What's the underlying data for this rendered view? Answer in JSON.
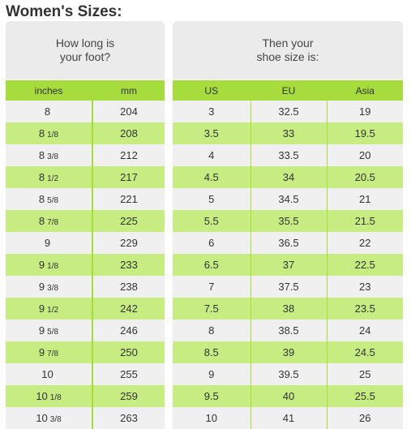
{
  "title": "Women's Sizes:",
  "left_panel": {
    "header": "How long is\nyour foot?"
  },
  "right_panel": {
    "header": "Then your\nshoe size is:"
  },
  "columns": {
    "inches": "inches",
    "mm": "mm",
    "us": "US",
    "eu": "EU",
    "asia": "Asia"
  },
  "rows": [
    {
      "in_whole": "8",
      "in_frac": "",
      "mm": "204",
      "us": "3",
      "eu": "32.5",
      "asia": "19"
    },
    {
      "in_whole": "8",
      "in_frac": "1/8",
      "mm": "208",
      "us": "3.5",
      "eu": "33",
      "asia": "19.5"
    },
    {
      "in_whole": "8",
      "in_frac": "3/8",
      "mm": "212",
      "us": "4",
      "eu": "33.5",
      "asia": "20"
    },
    {
      "in_whole": "8",
      "in_frac": "1/2",
      "mm": "217",
      "us": "4.5",
      "eu": "34",
      "asia": "20.5"
    },
    {
      "in_whole": "8",
      "in_frac": "5/8",
      "mm": "221",
      "us": "5",
      "eu": "34.5",
      "asia": "21"
    },
    {
      "in_whole": "8",
      "in_frac": "7/8",
      "mm": "225",
      "us": "5.5",
      "eu": "35.5",
      "asia": "21.5"
    },
    {
      "in_whole": "9",
      "in_frac": "",
      "mm": "229",
      "us": "6",
      "eu": "36.5",
      "asia": "22"
    },
    {
      "in_whole": "9",
      "in_frac": "1/8",
      "mm": "233",
      "us": "6.5",
      "eu": "37",
      "asia": "22.5"
    },
    {
      "in_whole": "9",
      "in_frac": "3/8",
      "mm": "238",
      "us": "7",
      "eu": "37.5",
      "asia": "23"
    },
    {
      "in_whole": "9",
      "in_frac": "1/2",
      "mm": "242",
      "us": "7.5",
      "eu": "38",
      "asia": "23.5"
    },
    {
      "in_whole": "9",
      "in_frac": "5/8",
      "mm": "246",
      "us": "8",
      "eu": "38.5",
      "asia": "24"
    },
    {
      "in_whole": "9",
      "in_frac": "7/8",
      "mm": "250",
      "us": "8.5",
      "eu": "39",
      "asia": "24.5"
    },
    {
      "in_whole": "10",
      "in_frac": "",
      "mm": "255",
      "us": "9",
      "eu": "39.5",
      "asia": "25"
    },
    {
      "in_whole": "10",
      "in_frac": "1/8",
      "mm": "259",
      "us": "9.5",
      "eu": "40",
      "asia": "25.5"
    },
    {
      "in_whole": "10",
      "in_frac": "3/8",
      "mm": "263",
      "us": "10",
      "eu": "41",
      "asia": "26"
    }
  ],
  "colors": {
    "header_green": "#a6dc3c",
    "row_green": "#c6ec82",
    "row_gray": "#f0f0f0",
    "panel_gray": "#ebebeb"
  }
}
